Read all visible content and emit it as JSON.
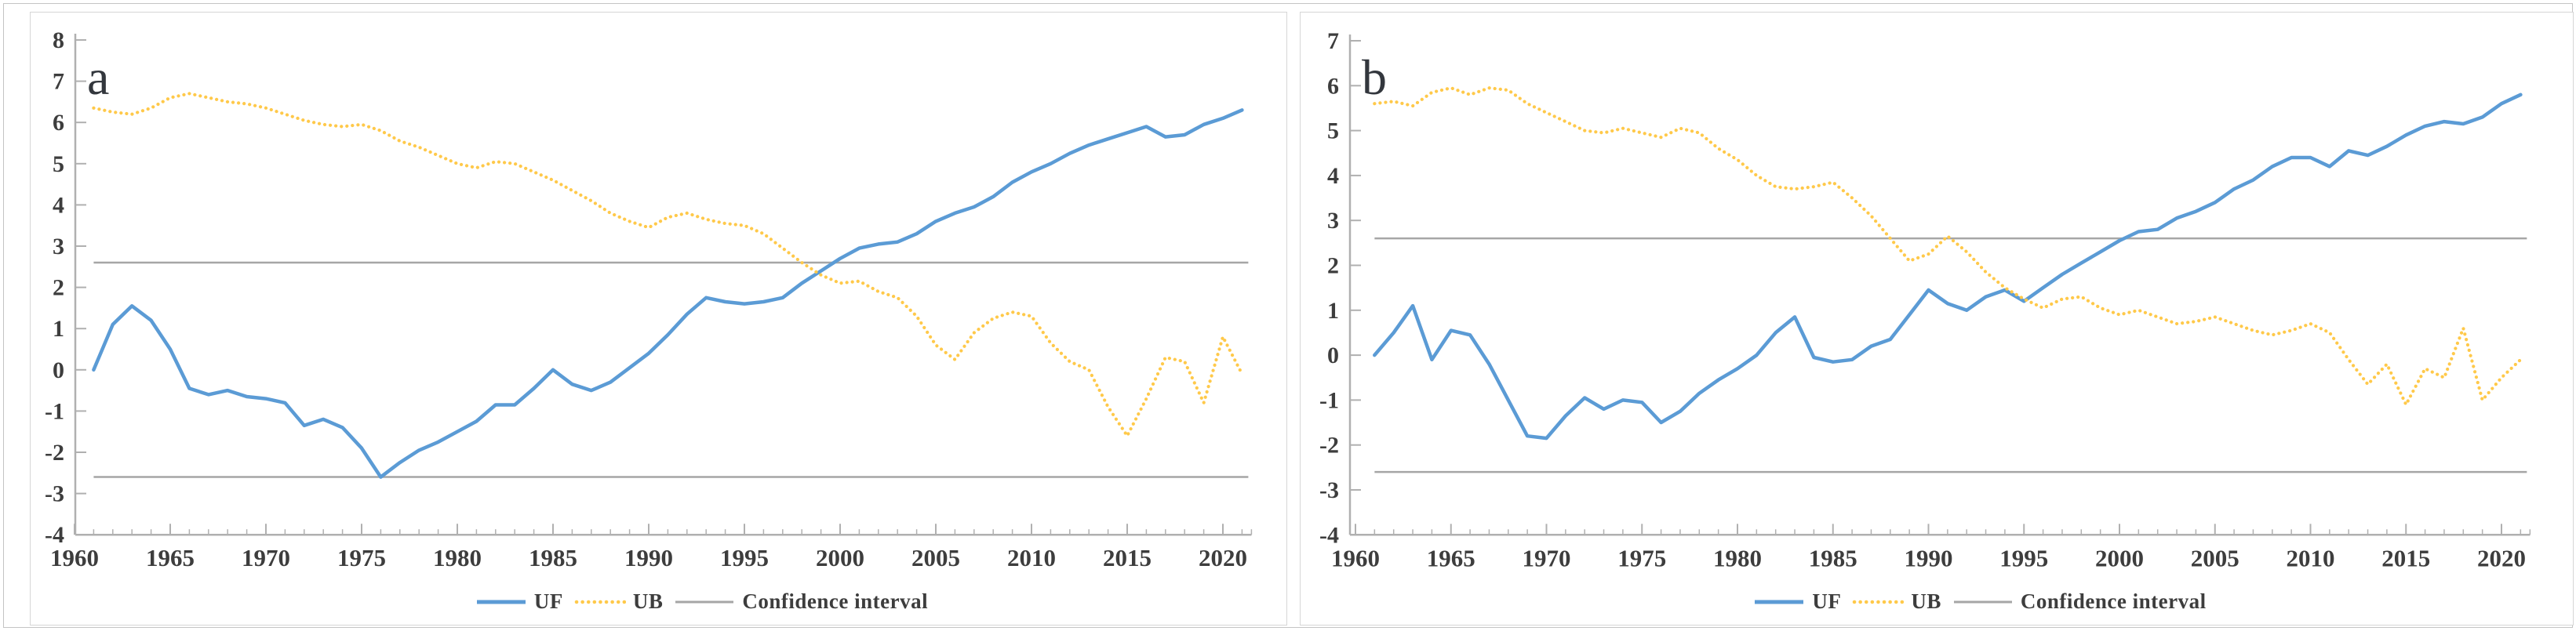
{
  "colors": {
    "uf_blue": "#5b9bd5",
    "ub_gold": "#ffc94a",
    "ci_gray": "#a6a6a6",
    "axis_gray": "#b0b0b0",
    "text_dark": "#3d3d3d"
  },
  "legend": {
    "uf_label": "UF",
    "ub_label": "UB",
    "ci_label": "Confidence interval"
  },
  "chart_data": [
    {
      "type": "line",
      "panel_label": "a",
      "x_start": 1961,
      "x": "years 1961-2021 annual",
      "xticks": [
        1960,
        1965,
        1970,
        1975,
        1980,
        1985,
        1990,
        1995,
        2000,
        2005,
        2010,
        2015,
        2020
      ],
      "ylim": [
        -4,
        8
      ],
      "yticks": [
        8,
        7,
        6,
        5,
        4,
        3,
        2,
        1,
        0,
        -1,
        -2,
        -3,
        -4
      ],
      "confidence_interval": {
        "upper": 2.6,
        "lower": -2.6
      },
      "legend_position": "bottom",
      "grid": false,
      "series": [
        {
          "name": "UF",
          "style": "solid",
          "color_key": "uf_blue",
          "values": [
            0,
            1.1,
            1.55,
            1.2,
            0.5,
            -0.45,
            -0.6,
            -0.5,
            -0.65,
            -0.7,
            -0.8,
            -1.35,
            -1.2,
            -1.4,
            -1.9,
            -2.6,
            -2.25,
            -1.95,
            -1.75,
            -1.5,
            -1.25,
            -0.85,
            -0.85,
            -0.45,
            0,
            -0.35,
            -0.5,
            -0.3,
            0.05,
            0.4,
            0.85,
            1.35,
            1.75,
            1.65,
            1.6,
            1.65,
            1.75,
            2.1,
            2.4,
            2.7,
            2.95,
            3.05,
            3.1,
            3.3,
            3.6,
            3.8,
            3.95,
            4.2,
            4.55,
            4.8,
            5.0,
            5.25,
            5.45,
            5.6,
            5.75,
            5.9,
            5.65,
            5.7,
            5.95,
            6.1,
            6.3
          ]
        },
        {
          "name": "UB",
          "style": "dotted",
          "color_key": "ub_gold",
          "values": [
            6.35,
            6.25,
            6.2,
            6.35,
            6.6,
            6.7,
            6.6,
            6.5,
            6.45,
            6.35,
            6.2,
            6.05,
            5.95,
            5.9,
            5.95,
            5.8,
            5.55,
            5.4,
            5.2,
            5.0,
            4.9,
            5.05,
            5.0,
            4.8,
            4.6,
            4.35,
            4.1,
            3.8,
            3.6,
            3.45,
            3.7,
            3.8,
            3.65,
            3.55,
            3.5,
            3.3,
            2.95,
            2.6,
            2.3,
            2.1,
            2.15,
            1.9,
            1.75,
            1.3,
            0.6,
            0.25,
            0.9,
            1.25,
            1.4,
            1.3,
            0.65,
            0.2,
            0.0,
            -0.9,
            -1.6,
            -0.7,
            0.3,
            0.2,
            -0.8,
            0.8,
            -0.1
          ]
        }
      ]
    },
    {
      "type": "line",
      "panel_label": "b",
      "x_start": 1961,
      "x": "years 1961-2021 annual",
      "xticks": [
        1960,
        1965,
        1970,
        1975,
        1980,
        1985,
        1990,
        1995,
        2000,
        2005,
        2010,
        2015,
        2020
      ],
      "ylim": [
        -4,
        7
      ],
      "yticks": [
        7,
        6,
        5,
        4,
        3,
        2,
        1,
        0,
        -1,
        -2,
        -3,
        -4
      ],
      "confidence_interval": {
        "upper": 2.6,
        "lower": -2.6
      },
      "legend_position": "bottom",
      "grid": false,
      "series": [
        {
          "name": "UF",
          "style": "solid",
          "color_key": "uf_blue",
          "values": [
            0,
            0.5,
            1.1,
            -0.1,
            0.55,
            0.45,
            -0.2,
            -1.0,
            -1.8,
            -1.85,
            -1.35,
            -0.95,
            -1.2,
            -1.0,
            -1.05,
            -1.5,
            -1.25,
            -0.85,
            -0.55,
            -0.3,
            0.0,
            0.5,
            0.85,
            -0.05,
            -0.15,
            -0.1,
            0.2,
            0.35,
            0.9,
            1.45,
            1.15,
            1.0,
            1.3,
            1.45,
            1.2,
            1.5,
            1.8,
            2.05,
            2.3,
            2.55,
            2.75,
            2.8,
            3.05,
            3.2,
            3.4,
            3.7,
            3.9,
            4.2,
            4.4,
            4.4,
            4.2,
            4.55,
            4.45,
            4.65,
            4.9,
            5.1,
            5.2,
            5.15,
            5.3,
            5.6,
            5.8
          ]
        },
        {
          "name": "UB",
          "style": "dotted",
          "color_key": "ub_gold",
          "values": [
            5.6,
            5.65,
            5.55,
            5.85,
            5.95,
            5.8,
            5.95,
            5.9,
            5.6,
            5.4,
            5.2,
            5.0,
            4.95,
            5.05,
            4.95,
            4.85,
            5.05,
            4.95,
            4.6,
            4.35,
            4.0,
            3.75,
            3.7,
            3.75,
            3.85,
            3.5,
            3.1,
            2.6,
            2.1,
            2.25,
            2.65,
            2.3,
            1.85,
            1.5,
            1.25,
            1.05,
            1.25,
            1.3,
            1.05,
            0.9,
            1.0,
            0.85,
            0.7,
            0.75,
            0.85,
            0.7,
            0.55,
            0.45,
            0.55,
            0.7,
            0.5,
            -0.1,
            -0.65,
            -0.2,
            -1.1,
            -0.3,
            -0.5,
            0.6,
            -1.0,
            -0.5,
            -0.1
          ]
        }
      ]
    }
  ]
}
